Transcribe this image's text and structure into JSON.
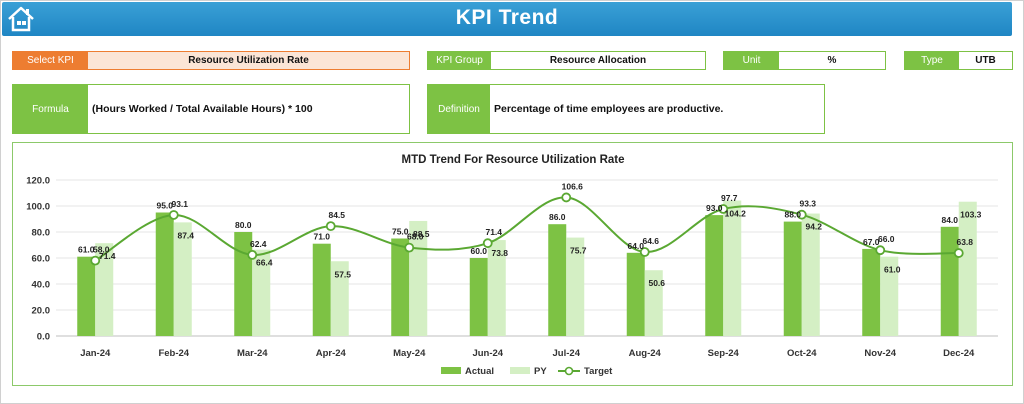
{
  "header": {
    "title": "KPI Trend",
    "home_icon": "home-icon"
  },
  "filters": {
    "select_kpi": {
      "label": "Select KPI",
      "value": "Resource Utilization Rate"
    },
    "kpi_group": {
      "label": "KPI Group",
      "value": "Resource Allocation"
    },
    "unit": {
      "label": "Unit",
      "value": "%"
    },
    "type": {
      "label": "Type",
      "value": "UTB"
    }
  },
  "formula": {
    "label": "Formula",
    "value": "(Hours Worked / Total Available Hours) * 100"
  },
  "definition": {
    "label": "Definition",
    "value": "Percentage of time employees are productive."
  },
  "colors": {
    "actual": "#7dc244",
    "py": "#d4efc4",
    "target": "#5aa832",
    "accent": "#1f86c4",
    "select": "#ed7d31"
  },
  "chart_data": {
    "type": "bar",
    "title": "MTD Trend For Resource Utilization  Rate",
    "categories": [
      "Jan-24",
      "Feb-24",
      "Mar-24",
      "Apr-24",
      "May-24",
      "Jun-24",
      "Jul-24",
      "Aug-24",
      "Sep-24",
      "Oct-24",
      "Nov-24",
      "Dec-24"
    ],
    "series": [
      {
        "name": "Actual",
        "type": "bar",
        "values": [
          61.0,
          95.0,
          80.0,
          71.0,
          75.0,
          60.0,
          86.0,
          64.0,
          93.0,
          88.0,
          67.0,
          84.0
        ]
      },
      {
        "name": "PY",
        "type": "bar",
        "values": [
          71.4,
          87.4,
          66.4,
          57.5,
          88.5,
          73.8,
          75.7,
          50.6,
          104.2,
          94.2,
          61.0,
          103.3
        ]
      },
      {
        "name": "Target",
        "type": "line",
        "values": [
          58.0,
          93.1,
          62.4,
          84.5,
          68.0,
          71.4,
          106.6,
          64.6,
          97.7,
          93.3,
          66.0,
          63.8
        ]
      }
    ],
    "ylim": [
      0,
      120
    ],
    "yticks": [
      "0.0",
      "20.0",
      "40.0",
      "60.0",
      "80.0",
      "100.0",
      "120.0"
    ],
    "grid": true,
    "legend": "bottom"
  }
}
